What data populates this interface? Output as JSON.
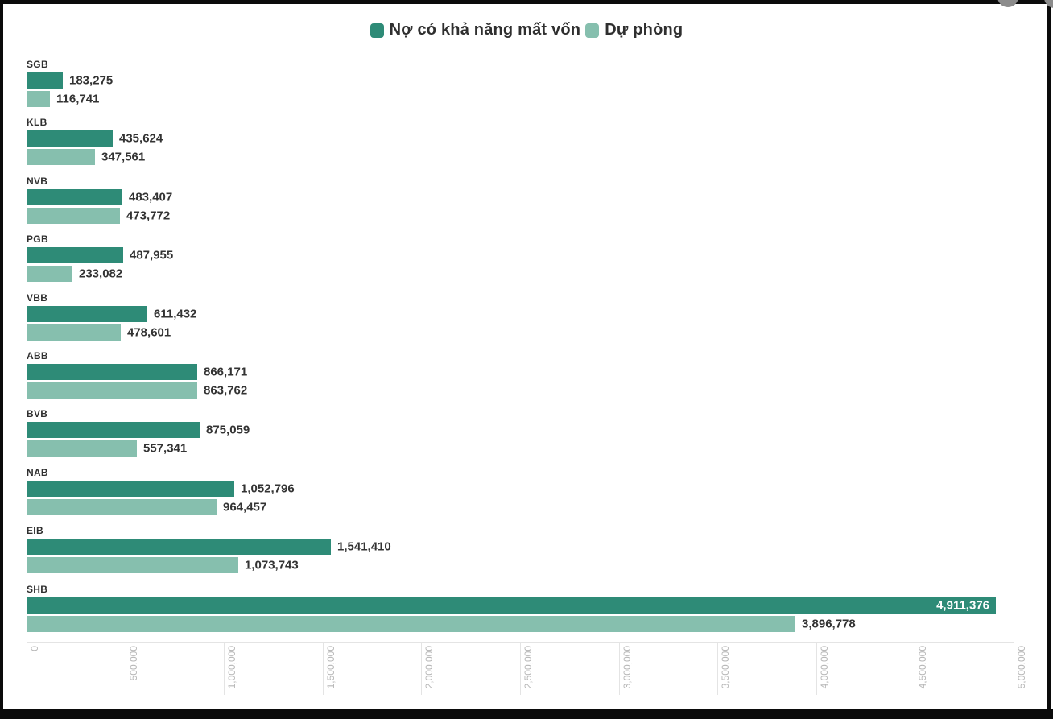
{
  "colors": {
    "series1": "#2e8b77",
    "series2": "#86bfae",
    "edge_strip": "#0b0b0b",
    "tick_text": "#b7b7b7",
    "label_text": "#303030"
  },
  "chart_data": {
    "type": "bar",
    "orientation": "horizontal",
    "title": "",
    "legend_position": "top",
    "grid": "vertical-lines-in-axis-band-only",
    "categories": [
      "SGB",
      "KLB",
      "NVB",
      "PGB",
      "VBB",
      "ABB",
      "BVB",
      "NAB",
      "EIB",
      "SHB"
    ],
    "series": [
      {
        "name": "Nợ có khả năng mất vốn",
        "color": "#2e8b77",
        "values": [
          183275,
          435624,
          483407,
          487955,
          611432,
          866171,
          875059,
          1052796,
          1541410,
          4911376
        ],
        "labels": [
          "183,275",
          "435,624",
          "483,407",
          "487,955",
          "611,432",
          "866,171",
          "875,059",
          "1,052,796",
          "1,541,410",
          "4,911,376"
        ]
      },
      {
        "name": "Dự phòng",
        "color": "#86bfae",
        "values": [
          116741,
          347561,
          473772,
          233082,
          478601,
          863762,
          557341,
          964457,
          1073743,
          3896778
        ],
        "labels": [
          "116,741",
          "347,561",
          "473,772",
          "233,082",
          "478,601",
          "863,762",
          "557,341",
          "964,457",
          "1,073,743",
          "3,896,778"
        ]
      }
    ],
    "xlim": [
      0,
      5000000
    ],
    "x_tick_values": [
      0,
      500000,
      1000000,
      1500000,
      2000000,
      2500000,
      3000000,
      3500000,
      4000000,
      4500000,
      5000000
    ],
    "x_ticks": [
      "0",
      "500,000",
      "1,000,000",
      "1,500,000",
      "2,000,000",
      "2,500,000",
      "3,000,000",
      "3,500,000",
      "4,000,000",
      "4,500,000",
      "5,000,000"
    ]
  }
}
